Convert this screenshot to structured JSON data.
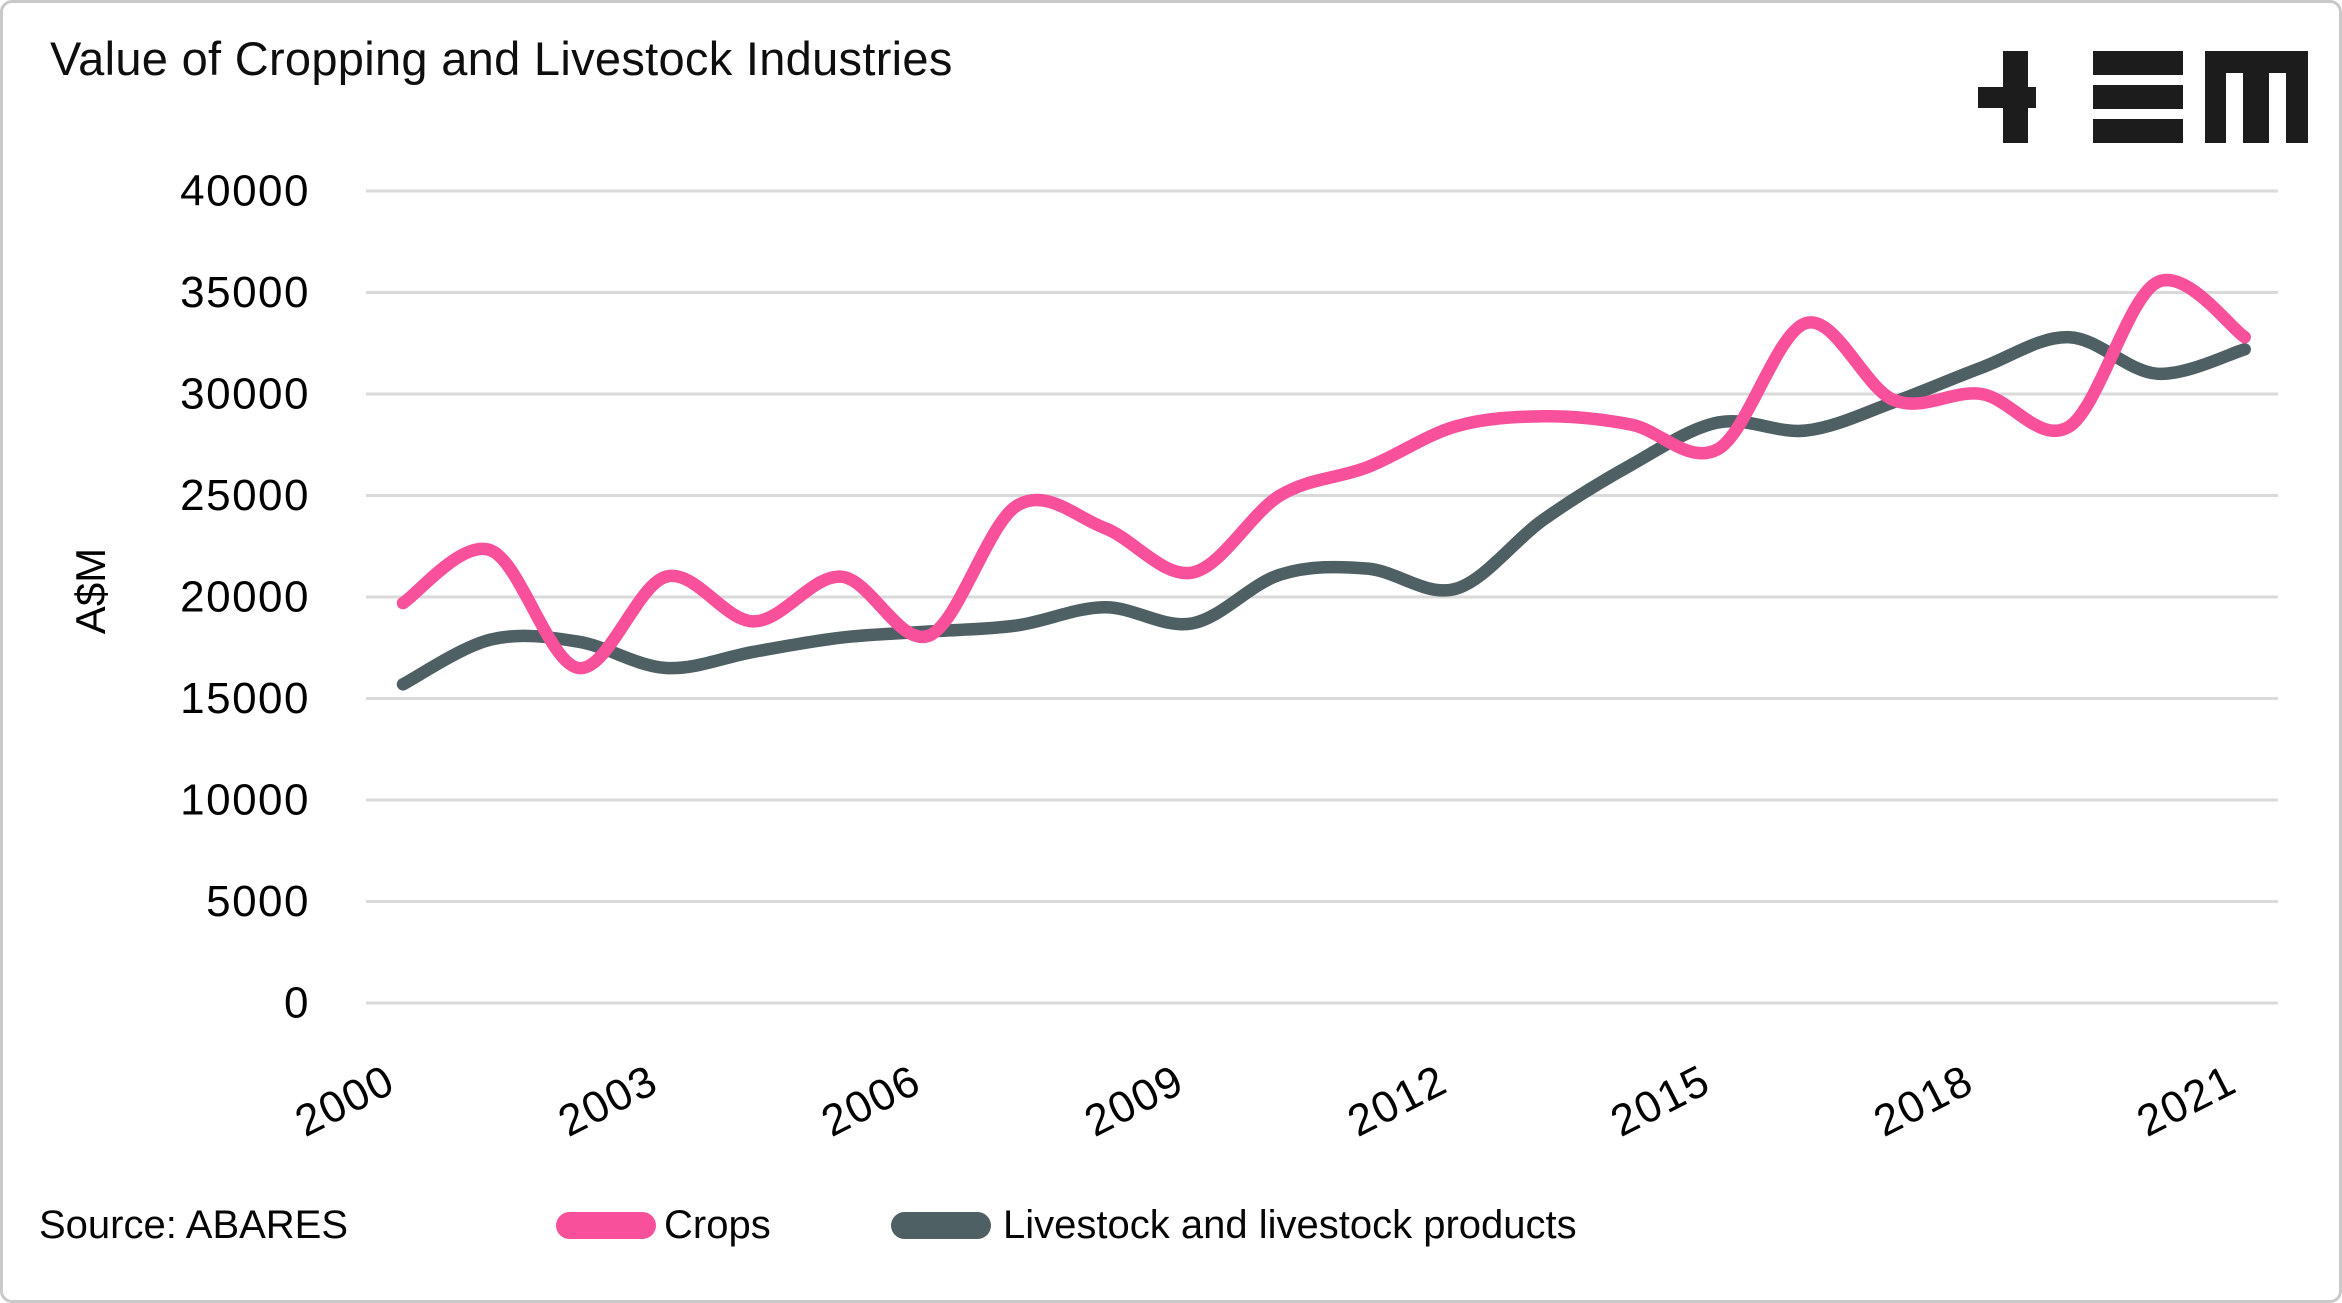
{
  "title": "Value of Cropping and Livestock Industries",
  "logo": {
    "icon": "plus-equals-m-logo"
  },
  "source_note": "Source: ABARES",
  "y_axis_title": "A$M",
  "legend": {
    "crops": {
      "label": "Crops",
      "color": "#F8509B"
    },
    "livestock": {
      "label": "Livestock and livestock products",
      "color": "#4E6064"
    }
  },
  "colors": {
    "crops_line": "#F8509B",
    "livestock_line": "#4E6064",
    "gridline": "#dadada",
    "text": "#000000",
    "card_border": "#c9c9c9"
  },
  "chart_data": {
    "type": "line",
    "title": "Value of Cropping and Livestock Industries",
    "xlabel": "",
    "ylabel": "A$M",
    "ylim": [
      0,
      40000
    ],
    "grid": true,
    "legend_position": "bottom",
    "x": [
      2000,
      2001,
      2002,
      2003,
      2004,
      2005,
      2006,
      2007,
      2008,
      2009,
      2010,
      2011,
      2012,
      2013,
      2014,
      2015,
      2016,
      2017,
      2018,
      2019,
      2020,
      2021
    ],
    "x_ticks": [
      2000,
      2003,
      2006,
      2009,
      2012,
      2015,
      2018,
      2021
    ],
    "y_ticks": [
      40000,
      35000,
      30000,
      25000,
      20000,
      15000,
      10000,
      5000,
      0
    ],
    "series": [
      {
        "name": "Crops",
        "color": "#F8509B",
        "values": [
          19700,
          22300,
          16500,
          21000,
          18800,
          21000,
          18100,
          24500,
          23400,
          21200,
          25000,
          26400,
          28400,
          28900,
          28500,
          27300,
          33500,
          29700,
          30000,
          28400,
          35500,
          32800
        ]
      },
      {
        "name": "Livestock and livestock products",
        "color": "#4E6064",
        "values": [
          15700,
          17900,
          17800,
          16500,
          17300,
          18000,
          18300,
          18600,
          19500,
          18700,
          21100,
          21400,
          20400,
          23800,
          26500,
          28600,
          28200,
          29600,
          31300,
          32800,
          31000,
          32200
        ]
      }
    ]
  }
}
